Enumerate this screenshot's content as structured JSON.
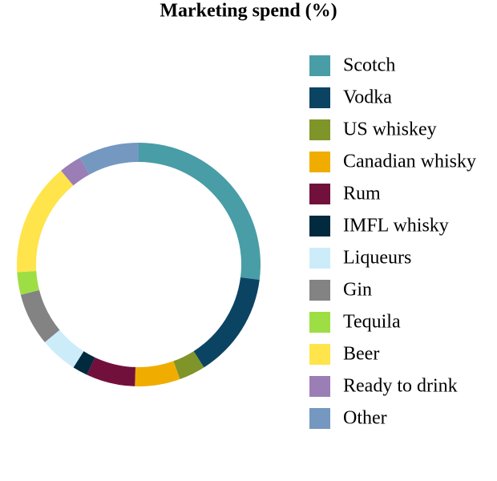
{
  "chart_data": {
    "type": "donut",
    "title": "Marketing spend (%)",
    "categories": [
      "Scotch",
      "Vodka",
      "US whiskey",
      "Canadian whisky",
      "Rum",
      "IMFL whisky",
      "Liqueurs",
      "Gin",
      "Tequila",
      "Beer",
      "Ready to drink",
      "Other"
    ],
    "values": [
      27,
      14,
      3.5,
      6,
      6.5,
      2,
      5,
      7,
      3,
      15,
      3,
      8
    ],
    "colors": [
      "#489da6",
      "#0b4463",
      "#7f9429",
      "#f0ad00",
      "#72103c",
      "#022a3e",
      "#cdecfa",
      "#838383",
      "#9ede45",
      "#ffe44b",
      "#9b7eb5",
      "#7498c0"
    ],
    "legend": "right"
  }
}
